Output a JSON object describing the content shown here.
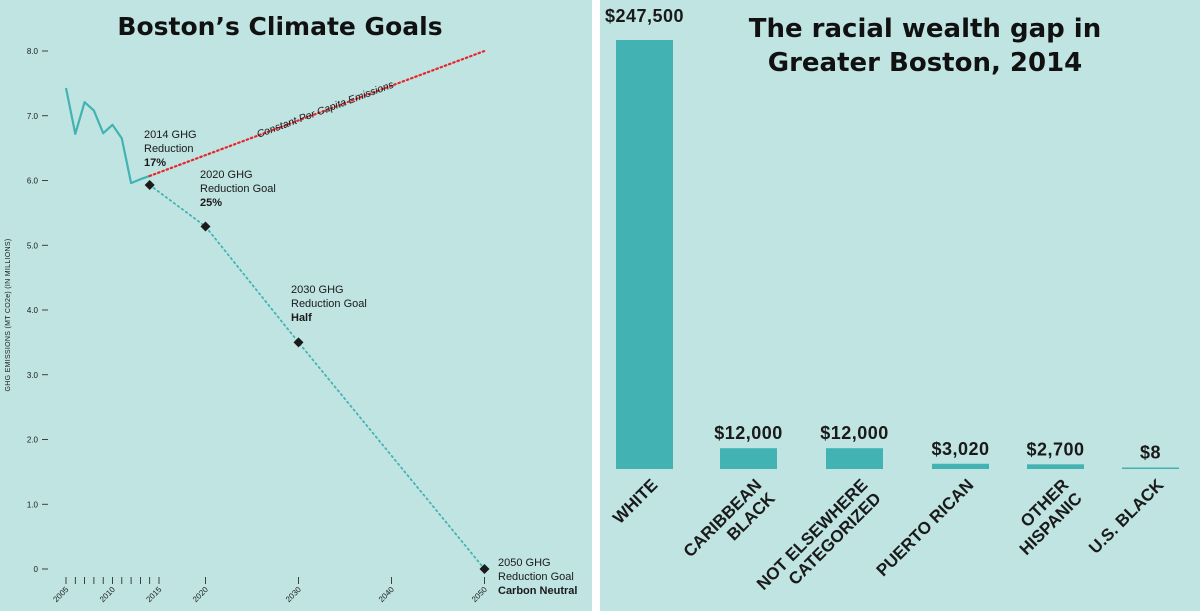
{
  "left_chart": {
    "title": "Boston’s Climate Goals",
    "ylabel": "GHG EMISSIONS (MT CO2e) (IN MILLIONS)",
    "trend_label": "Constant Per Capita Emissions",
    "y_ticks": [
      "0",
      "1.0",
      "2.0",
      "3.0",
      "4.0",
      "5.0",
      "6.0",
      "7.0",
      "8.0"
    ],
    "x_ticks": [
      "2005",
      "2010",
      "2015",
      "2020",
      "2030",
      "2040",
      "2050"
    ],
    "annotations": [
      {
        "line1": "2014 GHG",
        "line2": "Reduction",
        "emph": "17%"
      },
      {
        "line1": "2020 GHG",
        "line2": "Reduction Goal",
        "emph": "25%"
      },
      {
        "line1": "2030 GHG",
        "line2": "Reduction Goal",
        "emph": "Half"
      },
      {
        "line1": "2050 GHG",
        "line2": "Reduction Goal",
        "emph": "Carbon Neutral"
      }
    ]
  },
  "right_chart": {
    "title": "The racial wealth gap in Greater Boston, 2014"
  },
  "chart_data": [
    {
      "type": "line",
      "title": "Boston’s Climate Goals",
      "xlabel": "",
      "ylabel": "GHG EMISSIONS (MT CO2e) (IN MILLIONS)",
      "xlim": [
        2004,
        2054
      ],
      "ylim": [
        0,
        8
      ],
      "grid": false,
      "series": [
        {
          "x": [
            2005,
            2006,
            2007,
            2008,
            2009,
            2010,
            2011,
            2012,
            2013,
            2014
          ],
          "values": [
            7.43,
            6.72,
            7.21,
            7.08,
            6.73,
            6.86,
            6.65,
            5.96,
            6.02,
            6.07
          ]
        },
        {
          "name": "Constant Per Capita Emissions",
          "x": [
            2014,
            2050
          ],
          "values": [
            6.07,
            8.0
          ]
        },
        {
          "x": [
            2014,
            2020,
            2030,
            2050
          ],
          "values": [
            5.93,
            5.29,
            3.5,
            0.0
          ]
        }
      ]
    },
    {
      "type": "bar",
      "title": "The racial wealth gap in Greater Boston, 2014",
      "categories": [
        "WHITE",
        "CARIBBEAN BLACK",
        "NOT ELSEWHERE CATEGORIZED",
        "PUERTO RICAN",
        "OTHER HISPANIC",
        "U.S. BLACK"
      ],
      "values": [
        247500,
        12000,
        12000,
        3020,
        2700,
        8
      ],
      "value_labels": [
        "$247,500",
        "$12,000",
        "$12,000",
        "$3,020",
        "$2,700",
        "$8"
      ],
      "ylim": [
        0,
        247500
      ]
    }
  ],
  "colors": {
    "background": "#bfe4e2",
    "teal": "#42b3b2",
    "red": "#e8262b",
    "dark": "#1a1a1a"
  }
}
